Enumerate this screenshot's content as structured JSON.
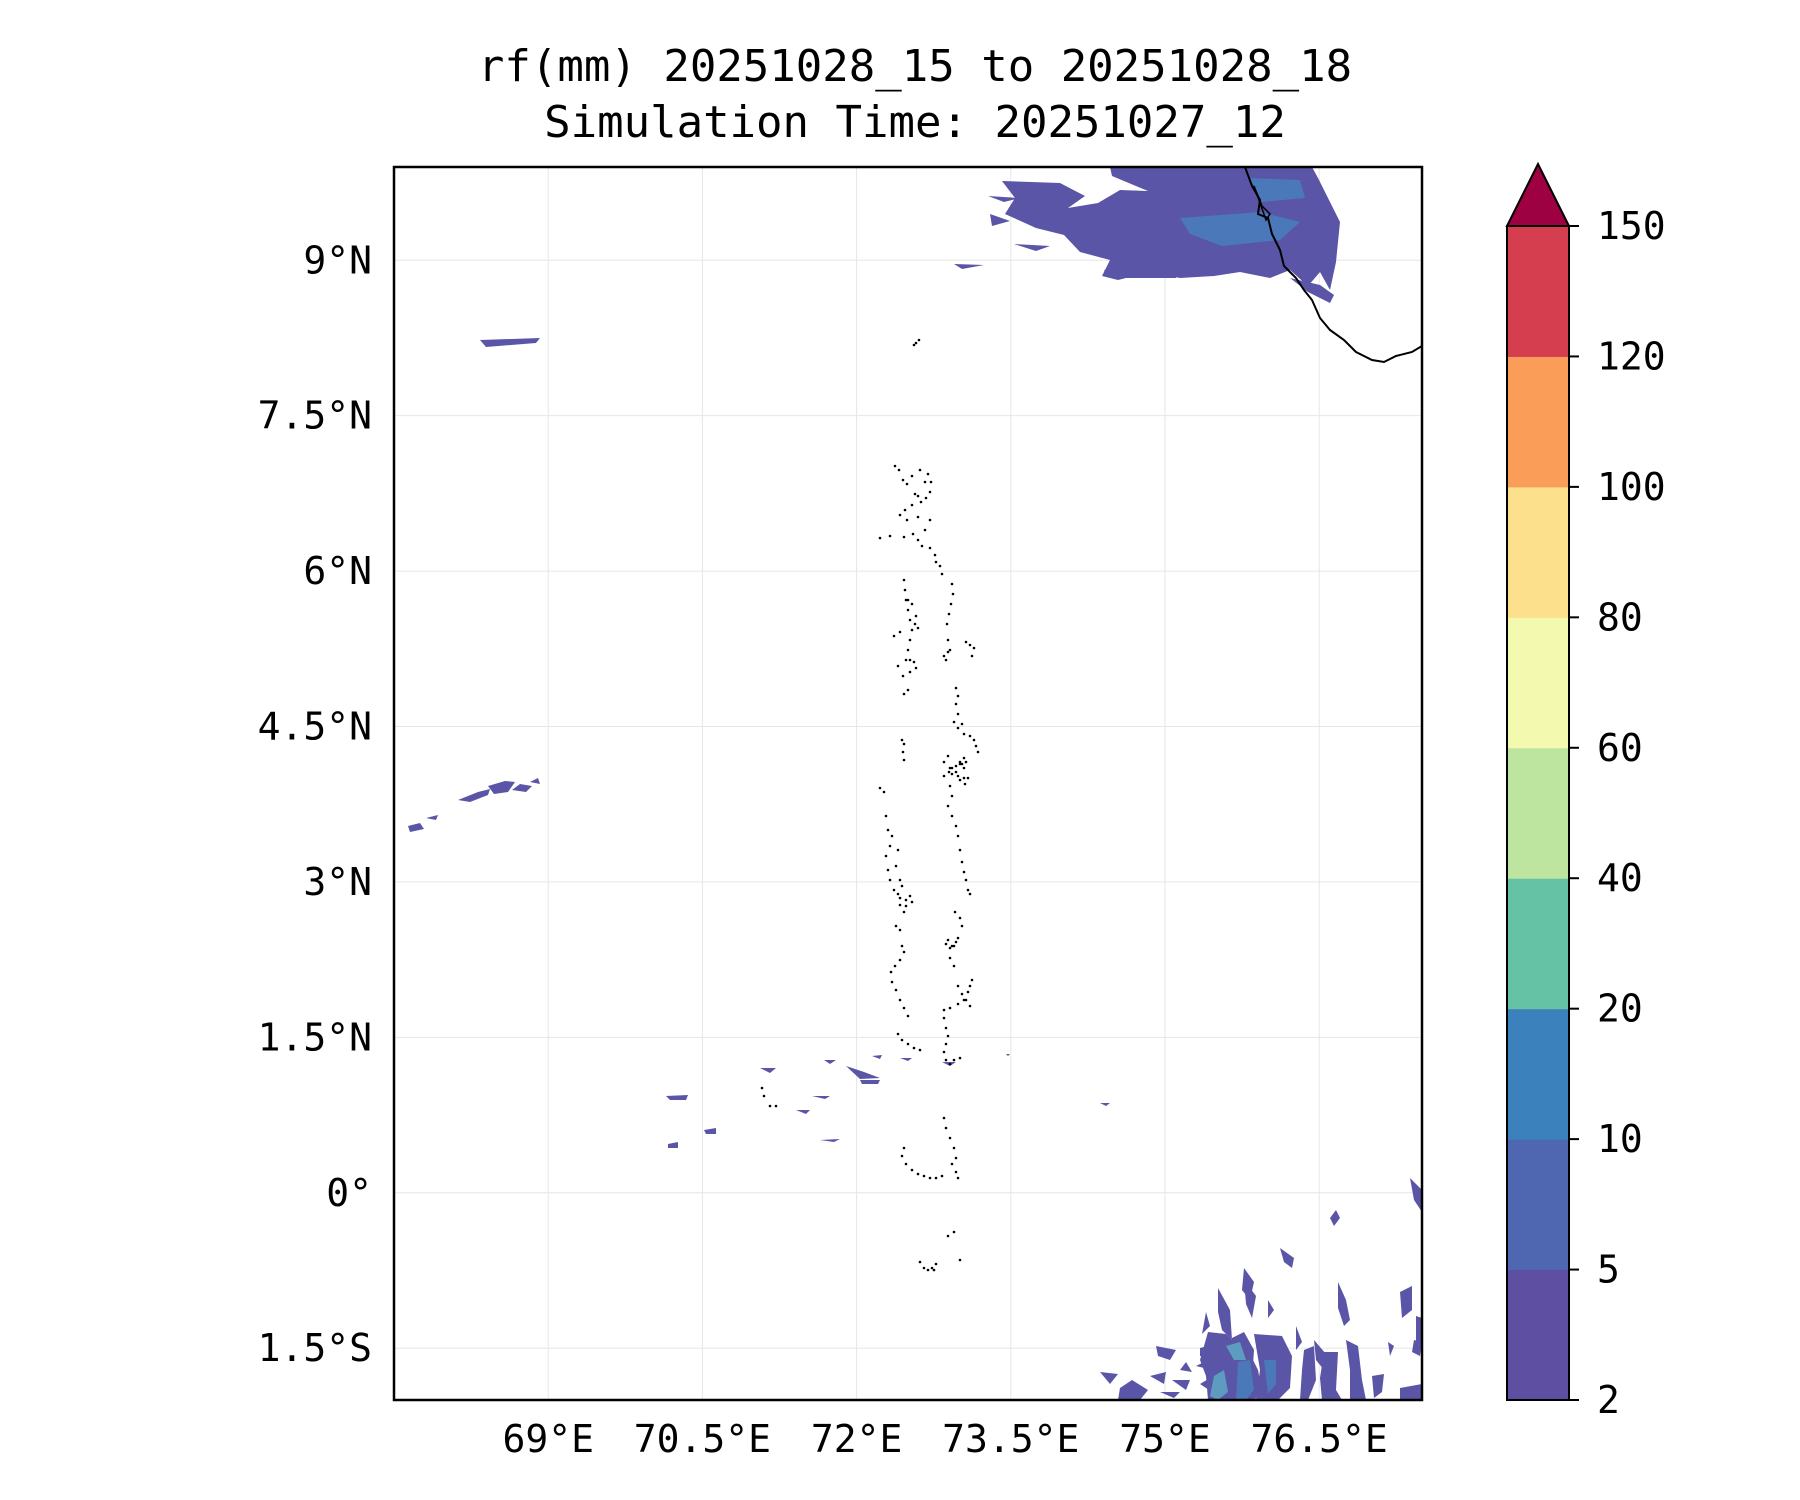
{
  "title_line1": "rf(mm) 20251028_15 to 20251028_18",
  "title_line2": "Simulation Time: 20251027_12",
  "map": {
    "lon_range": [
      67.5,
      77.5
    ],
    "lat_range": [
      -2.0,
      9.9
    ],
    "x_ticks": [
      {
        "value": 69.0,
        "label": "69°E"
      },
      {
        "value": 70.5,
        "label": "70.5°E"
      },
      {
        "value": 72.0,
        "label": "72°E"
      },
      {
        "value": 73.5,
        "label": "73.5°E"
      },
      {
        "value": 75.0,
        "label": "75°E"
      },
      {
        "value": 76.5,
        "label": "76.5°E"
      }
    ],
    "y_ticks": [
      {
        "value": 9.0,
        "label": "9°N"
      },
      {
        "value": 7.5,
        "label": "7.5°N"
      },
      {
        "value": 6.0,
        "label": "6°N"
      },
      {
        "value": 4.5,
        "label": "4.5°N"
      },
      {
        "value": 3.0,
        "label": "3°N"
      },
      {
        "value": 1.5,
        "label": "1.5°N"
      },
      {
        "value": 0.0,
        "label": "0°"
      },
      {
        "value": -1.5,
        "label": "1.5°S"
      }
    ],
    "gridlines": true
  },
  "colorbar": {
    "levels": [
      "2",
      "5",
      "10",
      "20",
      "40",
      "60",
      "80",
      "100",
      "120",
      "150"
    ],
    "colors": [
      "#5e4fa2",
      "#4f66b0",
      "#3b82bd",
      "#66c2a5",
      "#bde5a0",
      "#f3fab0",
      "#fde08b",
      "#f99d59",
      "#d53e4f"
    ],
    "extend_color": "#9e0142"
  },
  "rain_color": "#5a55a6",
  "rain_color_heavy": "#4a78b8",
  "rain_color_mid": "#5e9bc0",
  "coast_color": "#000000"
}
